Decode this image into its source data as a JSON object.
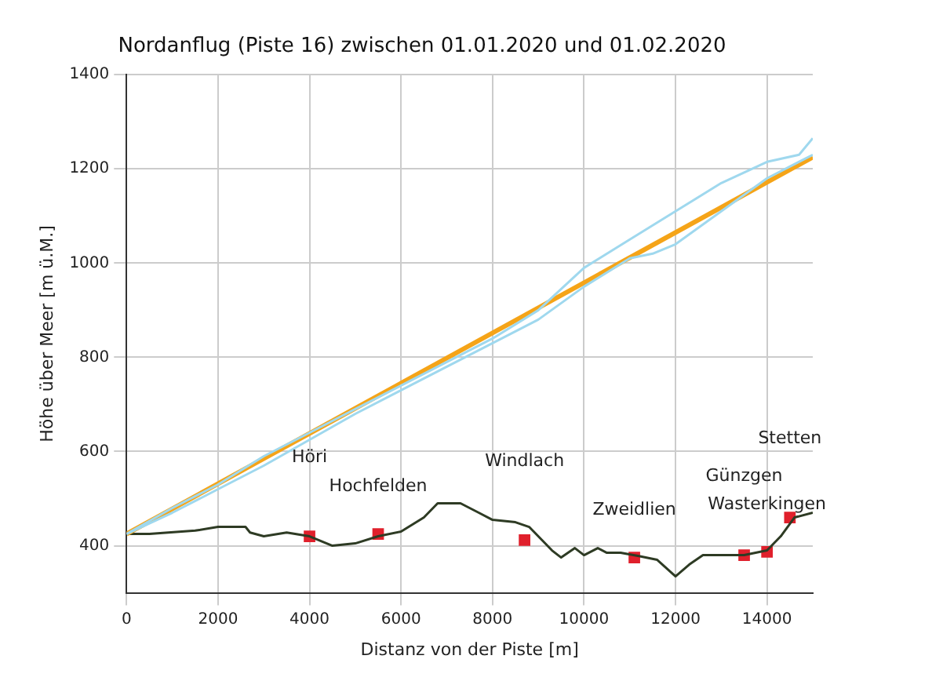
{
  "chart_data": {
    "type": "line",
    "title": "Nordanflug (Piste 16) zwischen 01.01.2020 und 01.02.2020",
    "xlabel": "Distanz von der Piste [m]",
    "ylabel": "Höhe über Meer [m ü.M.]",
    "xlim": [
      0,
      15000
    ],
    "xticks": [
      0,
      2000,
      4000,
      6000,
      8000,
      10000,
      12000,
      14000
    ],
    "ylim": [
      300,
      1400
    ],
    "yticks": [
      400,
      600,
      800,
      1000,
      1200,
      1400
    ],
    "grid": true,
    "legend": false,
    "series": [
      {
        "color": "#9fd8ee",
        "x": [
          0,
          1000,
          2000,
          3000,
          4000,
          5000,
          6000,
          7000,
          8000,
          9000,
          10000,
          11000,
          12000,
          13000,
          14000,
          14700,
          15000
        ],
        "values": [
          425,
          480,
          530,
          590,
          640,
          690,
          740,
          790,
          840,
          900,
          990,
          1050,
          1110,
          1170,
          1215,
          1230,
          1265
        ]
      },
      {
        "color": "#9fd8ee",
        "x": [
          0,
          1000,
          2000,
          3000,
          4000,
          5000,
          6000,
          7000,
          8000,
          9000,
          10000,
          11000,
          11500,
          12000,
          13000,
          14000,
          15000
        ],
        "values": [
          425,
          470,
          520,
          570,
          625,
          680,
          730,
          780,
          830,
          880,
          950,
          1010,
          1020,
          1040,
          1110,
          1180,
          1230
        ]
      },
      {
        "color": "#f5a418",
        "x": [
          0,
          15000
        ],
        "values": [
          425,
          1225
        ]
      },
      {
        "color": "#2e3b24",
        "x": [
          0,
          500,
          1500,
          2000,
          2600,
          2700,
          3000,
          3500,
          4000,
          4500,
          5000,
          5500,
          6000,
          6500,
          6800,
          7300,
          7700,
          8000,
          8500,
          8800,
          9000,
          9300,
          9500,
          9800,
          10000,
          10300,
          10500,
          10800,
          11200,
          11600,
          12000,
          12300,
          12600,
          13000,
          13500,
          14000,
          14300,
          14600,
          15000
        ],
        "values": [
          425,
          425,
          432,
          440,
          440,
          428,
          420,
          428,
          420,
          400,
          405,
          420,
          430,
          460,
          490,
          490,
          470,
          455,
          450,
          440,
          420,
          390,
          375,
          395,
          380,
          395,
          385,
          385,
          378,
          370,
          335,
          360,
          380,
          380,
          380,
          390,
          420,
          460,
          470
        ]
      },
      {
        "type": "scatter",
        "marker": "square",
        "color": "#e0202c",
        "x": [
          4000,
          5500,
          8700,
          11100,
          13500,
          14000,
          14500
        ],
        "values": [
          420,
          425,
          412,
          375,
          380,
          387,
          460
        ]
      }
    ],
    "annotations": [
      "Höri",
      "Hochfelden",
      "Windlach",
      "Zweidlien",
      "Günzgen",
      "Wasterkingen",
      "Stetten"
    ]
  }
}
